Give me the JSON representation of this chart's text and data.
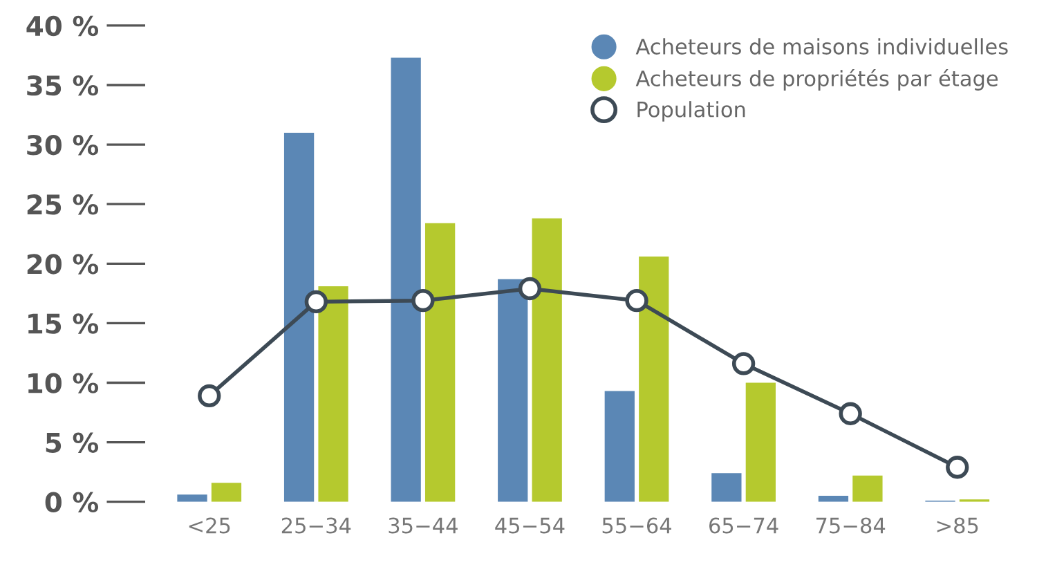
{
  "chart_data": {
    "type": "bar",
    "categories": [
      "<25",
      "25−34",
      "35−44",
      "45−54",
      "55−64",
      "65−74",
      "75−84",
      ">85"
    ],
    "series": [
      {
        "name": "Acheteurs de maisons individuelles",
        "color": "#5b87b5",
        "values": [
          0.6,
          31.0,
          37.3,
          18.7,
          9.3,
          2.4,
          0.5,
          0.1
        ]
      },
      {
        "name": "Acheteurs de propriétés par étage",
        "color": "#b5c92e",
        "values": [
          1.6,
          18.1,
          23.4,
          23.8,
          20.6,
          10.0,
          2.2,
          0.2
        ]
      },
      {
        "name": "Population",
        "type": "line",
        "color": "#3d4a55",
        "values": [
          8.9,
          16.8,
          16.9,
          17.9,
          16.9,
          11.6,
          7.4,
          2.9
        ]
      }
    ],
    "ylim": [
      0,
      40
    ],
    "yticks": [
      {
        "value": 0,
        "label": "0 %"
      },
      {
        "value": 5,
        "label": "5 %"
      },
      {
        "value": 10,
        "label": "10 %"
      },
      {
        "value": 15,
        "label": "15 %"
      },
      {
        "value": 20,
        "label": "20 %"
      },
      {
        "value": 25,
        "label": "25 %"
      },
      {
        "value": 30,
        "label": "30 %"
      },
      {
        "value": 35,
        "label": "35 %"
      },
      {
        "value": 40,
        "label": "40 %"
      }
    ],
    "marker": "circle",
    "legend": "top right",
    "grid": false
  }
}
